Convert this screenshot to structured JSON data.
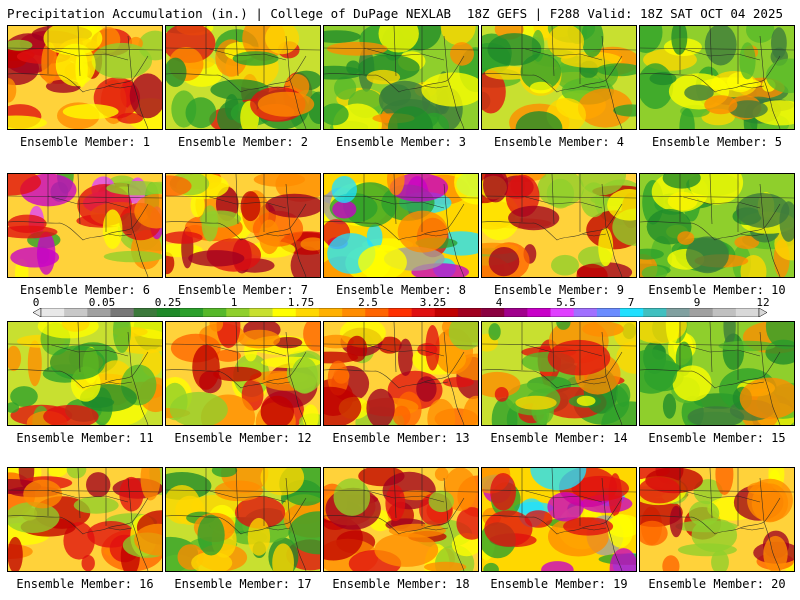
{
  "header": {
    "left_title": "Precipitation Accumulation (in.) | College of DuPage NEXLAB",
    "right_title": "18Z GEFS | F288 Valid: 18Z SAT OCT 04 2025"
  },
  "colorbar": {
    "tick_labels": [
      "0",
      "0.05",
      "0.25",
      "1",
      "1.75",
      "2.5",
      "3.25",
      "4",
      "5.5",
      "7",
      "9",
      "12"
    ],
    "colors": [
      "#e8e8e8",
      "#c8c8c8",
      "#a0a0a0",
      "#787878",
      "#3c7a3c",
      "#1f8a2a",
      "#2ca02c",
      "#56b82a",
      "#8fcf2c",
      "#c8e030",
      "#ffff00",
      "#ffd700",
      "#ffb000",
      "#ff8c00",
      "#ff6400",
      "#ff3000",
      "#e01010",
      "#c00000",
      "#a00020",
      "#8b0040",
      "#a0008c",
      "#c800c8",
      "#e040ff",
      "#a070ff",
      "#6a8cff",
      "#20e0ff",
      "#40c0c0",
      "#80a0a0",
      "#a0a0a0",
      "#c0c0c0",
      "#d8d8d8"
    ]
  },
  "members": [
    {
      "label": "Ensemble Member: 1",
      "theme": "warm"
    },
    {
      "label": "Ensemble Member: 2",
      "theme": "mixed"
    },
    {
      "label": "Ensemble Member: 3",
      "theme": "green"
    },
    {
      "label": "Ensemble Member: 4",
      "theme": "mixed"
    },
    {
      "label": "Ensemble Member: 5",
      "theme": "green"
    },
    {
      "label": "Ensemble Member: 6",
      "theme": "purple"
    },
    {
      "label": "Ensemble Member: 7",
      "theme": "warm"
    },
    {
      "label": "Ensemble Member: 8",
      "theme": "cyan"
    },
    {
      "label": "Ensemble Member: 9",
      "theme": "warm"
    },
    {
      "label": "Ensemble Member: 10",
      "theme": "green"
    },
    {
      "label": "Ensemble Member: 11",
      "theme": "mixed"
    },
    {
      "label": "Ensemble Member: 12",
      "theme": "warm"
    },
    {
      "label": "Ensemble Member: 13",
      "theme": "warm"
    },
    {
      "label": "Ensemble Member: 14",
      "theme": "mixed"
    },
    {
      "label": "Ensemble Member: 15",
      "theme": "green"
    },
    {
      "label": "Ensemble Member: 16",
      "theme": "warm"
    },
    {
      "label": "Ensemble Member: 17",
      "theme": "mixed"
    },
    {
      "label": "Ensemble Member: 18",
      "theme": "warm"
    },
    {
      "label": "Ensemble Member: 19",
      "theme": "cyan"
    },
    {
      "label": "Ensemble Member: 20",
      "theme": "warm"
    }
  ]
}
